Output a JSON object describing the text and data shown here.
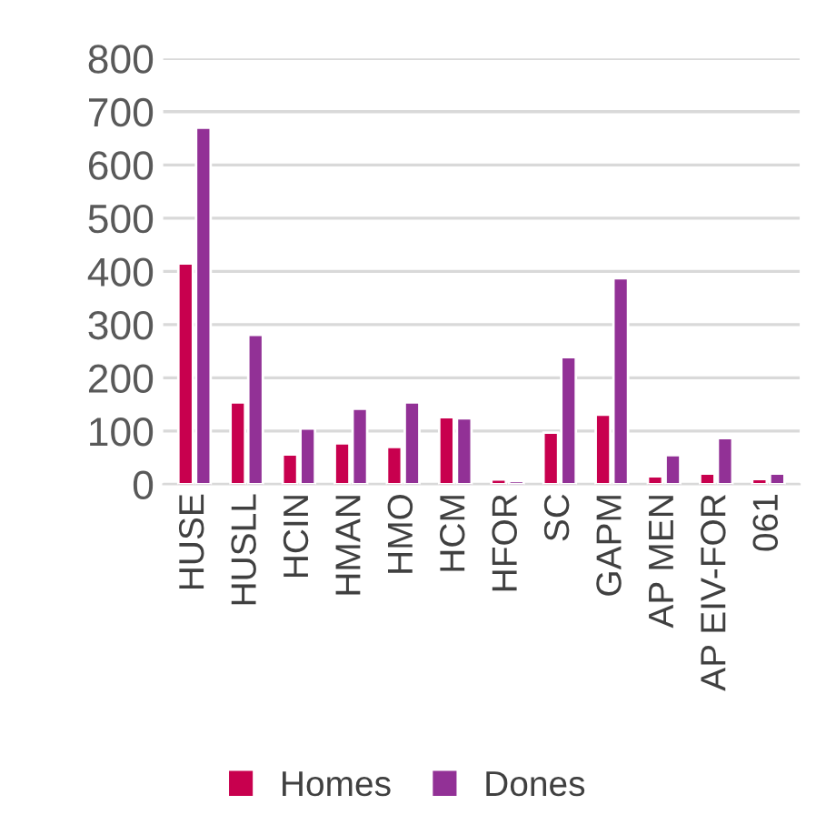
{
  "chart_data": {
    "type": "bar",
    "categories": [
      "HUSE",
      "HUSLL",
      "HCIN",
      "HMAN",
      "HMO",
      "HCM",
      "HFOR",
      "SC",
      "GAPM",
      "AP MEN",
      "AP EIV-FOR",
      "061"
    ],
    "series": [
      {
        "name": "Homes",
        "color": "#c8004e",
        "values": [
          415,
          154,
          56,
          77,
          70,
          126,
          9,
          97,
          131,
          15,
          20,
          10
        ]
      },
      {
        "name": "Dones",
        "color": "#923196",
        "values": [
          670,
          281,
          105,
          142,
          154,
          124,
          6,
          239,
          387,
          55,
          87,
          20
        ]
      }
    ],
    "ylim": [
      0,
      800
    ],
    "yticks": [
      0,
      100,
      200,
      300,
      400,
      500,
      600,
      700,
      800
    ],
    "grid": "y",
    "legend": "bottom"
  }
}
